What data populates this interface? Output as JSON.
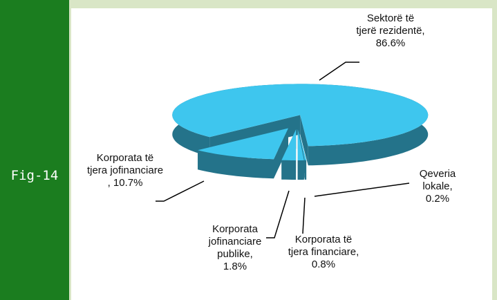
{
  "figure_label": "Fig-14",
  "chart_data": {
    "type": "pie3d",
    "categories": [
      "Sektorë të tjerë rezidentë,",
      "Qeveria lokale,",
      "Korporata të tjera financiare,",
      "Korporata jofinanciare publike,",
      "Korporata të tjera jofinanciare"
    ],
    "values": [
      86.6,
      0.2,
      0.8,
      1.8,
      10.7
    ],
    "value_labels": [
      "86.6%",
      "0.2%",
      "0.8%",
      "1.8%",
      ", 10.7%"
    ],
    "color": "#3ec6ee"
  }
}
